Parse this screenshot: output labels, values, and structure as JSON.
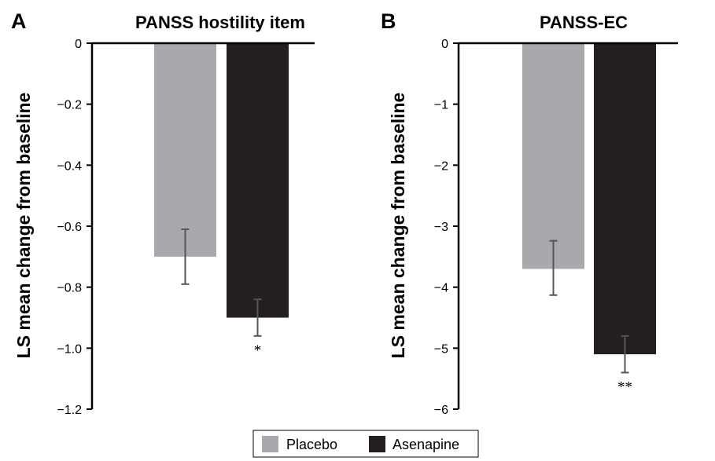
{
  "chart_data": [
    {
      "type": "bar",
      "panel": "A",
      "title": "PANSS hostility item",
      "ylabel": "LS mean change from baseline",
      "xlabel": "",
      "ylim": [
        -1.2,
        0
      ],
      "yticks": [
        0,
        -0.2,
        -0.4,
        -0.6,
        -0.8,
        -1.0,
        -1.2
      ],
      "ytick_labels": [
        "0",
        "−0.2",
        "−0.4",
        "−0.6",
        "−0.8",
        "−1.0",
        "−1.2"
      ],
      "categories": [
        "Placebo",
        "Asenapine"
      ],
      "values": [
        -0.7,
        -0.9
      ],
      "error_low": [
        -0.79,
        -0.96
      ],
      "error_high": [
        -0.61,
        -0.84
      ],
      "significance": [
        "",
        "*"
      ],
      "grid": false
    },
    {
      "type": "bar",
      "panel": "B",
      "title": "PANSS-EC",
      "ylabel": "LS mean change from baseline",
      "xlabel": "",
      "ylim": [
        -6,
        0
      ],
      "yticks": [
        0,
        -1,
        -2,
        -3,
        -4,
        -5,
        -6
      ],
      "ytick_labels": [
        "0",
        "−1",
        "−2",
        "−3",
        "−4",
        "−5",
        "−6"
      ],
      "categories": [
        "Placebo",
        "Asenapine"
      ],
      "values": [
        -3.7,
        -5.1
      ],
      "error_low": [
        -4.13,
        -5.4
      ],
      "error_high": [
        -3.24,
        -4.8
      ],
      "significance": [
        "",
        "**"
      ],
      "grid": false
    }
  ],
  "legend": {
    "placement": "bottom-center",
    "items": [
      {
        "label": "Placebo",
        "color": "#a7a9ac"
      },
      {
        "label": "Asenapine",
        "color": "#231f20"
      }
    ]
  },
  "colors": {
    "placebo": "#a7a9ac",
    "asenapine": "#231f20",
    "error_bar": "#555555",
    "axis": "#000000"
  }
}
